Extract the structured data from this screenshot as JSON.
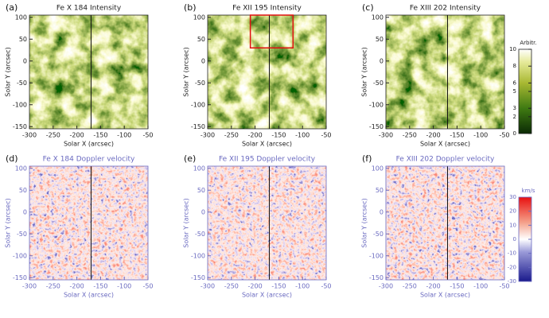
{
  "panels": [
    {
      "letter": "(a)",
      "title": "Fe X 184 Intensity",
      "kind": "intensity"
    },
    {
      "letter": "(b)",
      "title": "Fe XII 195 Intensity",
      "kind": "intensity"
    },
    {
      "letter": "(c)",
      "title": "Fe XIII 202 Intensity",
      "kind": "intensity"
    },
    {
      "letter": "(d)",
      "title": "Fe X 184 Doppler velocity",
      "kind": "doppler"
    },
    {
      "letter": "(e)",
      "title": "Fe XII 195 Doppler velocity",
      "kind": "doppler"
    },
    {
      "letter": "(f)",
      "title": "Fe XIII 202 Doppler velocity",
      "kind": "doppler"
    }
  ],
  "x_label": "Solar X (arcsec)",
  "y_label": "Solar Y (arcsec)",
  "xlim": [
    -300,
    -50
  ],
  "ylim": [
    -155,
    105
  ],
  "xticks": [
    -300,
    -250,
    -200,
    -150,
    -100,
    -50
  ],
  "yticks": [
    -150,
    -100,
    -50,
    0,
    50,
    100
  ],
  "boundary_x": -170,
  "box": {
    "panel": 1,
    "x": [
      -210,
      -120
    ],
    "y": [
      30,
      105
    ]
  },
  "colorbars": [
    {
      "label": "Arbitr.",
      "lim": [
        0,
        10
      ],
      "ticks": [
        0,
        2,
        3,
        5,
        6,
        8,
        10
      ],
      "kind": "intensity"
    },
    {
      "label": "km/s",
      "lim": [
        -30,
        30
      ],
      "ticks": [
        -30,
        -20,
        -10,
        0,
        10,
        20,
        30
      ],
      "kind": "doppler"
    }
  ]
}
